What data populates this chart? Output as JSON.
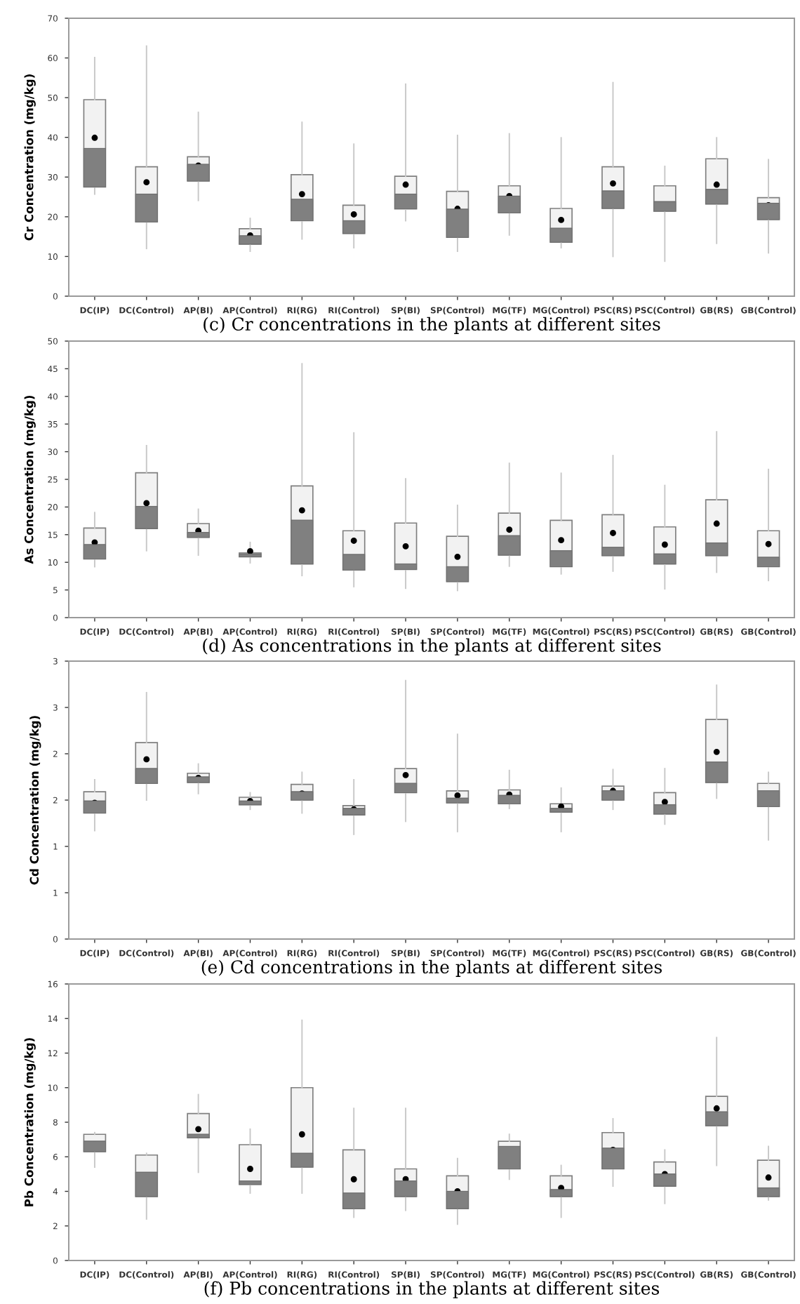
{
  "chart_data": [
    {
      "type": "box",
      "title": "(c) Cr concentrations in the plants at different sites",
      "ylabel": "Cr Concentration (mg/kg)",
      "ylim": [
        0,
        70
      ],
      "yticks": [
        0,
        10,
        20,
        30,
        40,
        50,
        60,
        70
      ],
      "categories": [
        "DC(IP)",
        "DC(Control)",
        "AP(BI)",
        "AP(Control)",
        "RI(RG)",
        "RI(Control)",
        "SP(BI)",
        "SP(Control)",
        "MG(TF)",
        "MG(Control)",
        "PSC(RS)",
        "PSC(Control)",
        "GB(RS)",
        "GB(Control)"
      ],
      "boxes": [
        {
          "low": 25.7,
          "q1": 27.5,
          "median": 37.2,
          "q3": 49.5,
          "high": 60.1,
          "mean": 39.9
        },
        {
          "low": 12.0,
          "q1": 18.7,
          "median": 25.7,
          "q3": 32.6,
          "high": 63,
          "mean": 28.7
        },
        {
          "low": 24.1,
          "q1": 29.0,
          "median": 33.2,
          "q3": 35.1,
          "high": 46.3,
          "mean": 32.9
        },
        {
          "low": 11.3,
          "q1": 13.1,
          "median": 15.2,
          "q3": 17.0,
          "high": 19.6,
          "mean": 15.3
        },
        {
          "low": 14.4,
          "q1": 19.0,
          "median": 24.4,
          "q3": 30.6,
          "high": 43.8,
          "mean": 25.7
        },
        {
          "low": 12.2,
          "q1": 15.8,
          "median": 19.0,
          "q3": 22.9,
          "high": 38.3,
          "mean": 20.6
        },
        {
          "low": 19.0,
          "q1": 22.0,
          "median": 25.7,
          "q3": 30.2,
          "high": 53.4,
          "mean": 28.1
        },
        {
          "low": 11.3,
          "q1": 14.8,
          "median": 21.9,
          "q3": 26.4,
          "high": 40.5,
          "mean": 22.0
        },
        {
          "low": 15.4,
          "q1": 21.0,
          "median": 25.2,
          "q3": 27.8,
          "high": 40.9,
          "mean": 25.2
        },
        {
          "low": 12.2,
          "q1": 13.6,
          "median": 17.1,
          "q3": 22.1,
          "high": 39.9,
          "mean": 19.2
        },
        {
          "low": 10.0,
          "q1": 22.1,
          "median": 26.5,
          "q3": 32.6,
          "high": 53.8,
          "mean": 28.4
        },
        {
          "low": 8.8,
          "q1": 21.4,
          "median": 23.8,
          "q3": 27.8,
          "high": 32.7,
          "mean": 22.5
        },
        {
          "low": 13.3,
          "q1": 23.2,
          "median": 26.9,
          "q3": 34.6,
          "high": 39.9,
          "mean": 28.1
        },
        {
          "low": 10.9,
          "q1": 19.3,
          "median": 23.4,
          "q3": 24.8,
          "high": 34.4,
          "mean": 22.9
        }
      ]
    },
    {
      "type": "box",
      "title": "(d) As concentrations in the plants at different sites",
      "ylabel": "As Concentration (mg/kg)",
      "ylim": [
        0,
        50
      ],
      "yticks": [
        0,
        5,
        10,
        15,
        20,
        25,
        30,
        35,
        40,
        45,
        50
      ],
      "categories": [
        "DC(IP)",
        "DC(Control)",
        "AP(BI)",
        "AP(Control)",
        "RI(RG)",
        "RI(Control)",
        "SP(BI)",
        "SP(Control)",
        "MG(TF)",
        "MG(Control)",
        "PSC(RS)",
        "PSC(Control)",
        "GB(RS)",
        "GB(Control)"
      ],
      "boxes": [
        {
          "low": 9.2,
          "q1": 10.6,
          "median": 13.2,
          "q3": 16.2,
          "high": 19.0,
          "mean": 13.6
        },
        {
          "low": 12.1,
          "q1": 16.1,
          "median": 20.1,
          "q3": 26.2,
          "high": 31.1,
          "mean": 20.7
        },
        {
          "low": 11.3,
          "q1": 14.5,
          "median": 15.4,
          "q3": 17.0,
          "high": 19.6,
          "mean": 15.7
        },
        {
          "low": 9.9,
          "q1": 11.0,
          "median": 11.5,
          "q3": 11.7,
          "high": 13.6,
          "mean": 12.0
        },
        {
          "low": 7.6,
          "q1": 9.7,
          "median": 17.6,
          "q3": 23.8,
          "high": 45.9,
          "mean": 19.4
        },
        {
          "low": 5.6,
          "q1": 8.6,
          "median": 11.4,
          "q3": 15.7,
          "high": 33.4,
          "mean": 13.9
        },
        {
          "low": 5.3,
          "q1": 8.7,
          "median": 9.7,
          "q3": 17.1,
          "high": 25.1,
          "mean": 12.9
        },
        {
          "low": 4.9,
          "q1": 6.5,
          "median": 9.2,
          "q3": 14.7,
          "high": 20.3,
          "mean": 11.0
        },
        {
          "low": 9.3,
          "q1": 11.3,
          "median": 14.8,
          "q3": 18.9,
          "high": 27.9,
          "mean": 15.9
        },
        {
          "low": 7.9,
          "q1": 9.2,
          "median": 12.1,
          "q3": 17.6,
          "high": 26.1,
          "mean": 14.0
        },
        {
          "low": 8.4,
          "q1": 11.2,
          "median": 12.7,
          "q3": 18.6,
          "high": 29.3,
          "mean": 15.3
        },
        {
          "low": 5.2,
          "q1": 9.7,
          "median": 11.5,
          "q3": 16.4,
          "high": 23.9,
          "mean": 13.2
        },
        {
          "low": 8.2,
          "q1": 11.2,
          "median": 13.5,
          "q3": 21.3,
          "high": 33.6,
          "mean": 17.0
        },
        {
          "low": 6.7,
          "q1": 9.2,
          "median": 10.9,
          "q3": 15.7,
          "high": 26.8,
          "mean": 13.3
        }
      ]
    },
    {
      "type": "box",
      "title": "(e) Cd concentrations in the plants at different sites",
      "ylabel": "Cd Concentration (mg/kg)",
      "ylim": [
        0,
        3
      ],
      "yticks": [
        0,
        {
          "value": 0.5,
          "label": "1"
        },
        1,
        {
          "value": 1.5,
          "label": "2"
        },
        2,
        {
          "value": 2.5,
          "label": "3"
        },
        3
      ],
      "categories": [
        "DC(IP)",
        "DC(Control)",
        "AP(BI)",
        "AP(Control)",
        "RI(RG)",
        "RI(Control)",
        "SP(BI)",
        "SP(Control)",
        "MG(TF)",
        "MG(Control)",
        "PSC(RS)",
        "PSC(Control)",
        "GB(RS)",
        "GB(Control)"
      ],
      "boxes": [
        {
          "low": 1.17,
          "q1": 1.36,
          "median": 1.49,
          "q3": 1.59,
          "high": 1.72,
          "mean": 1.47
        },
        {
          "low": 1.5,
          "q1": 1.68,
          "median": 1.84,
          "q3": 2.12,
          "high": 2.66,
          "mean": 1.94
        },
        {
          "low": 1.57,
          "q1": 1.69,
          "median": 1.75,
          "q3": 1.79,
          "high": 1.89,
          "mean": 1.74
        },
        {
          "low": 1.4,
          "q1": 1.45,
          "median": 1.49,
          "q3": 1.53,
          "high": 1.58,
          "mean": 1.49
        },
        {
          "low": 1.36,
          "q1": 1.5,
          "median": 1.59,
          "q3": 1.67,
          "high": 1.8,
          "mean": 1.57
        },
        {
          "low": 1.13,
          "q1": 1.34,
          "median": 1.41,
          "q3": 1.44,
          "high": 1.72,
          "mean": 1.4
        },
        {
          "low": 1.27,
          "q1": 1.58,
          "median": 1.68,
          "q3": 1.84,
          "high": 2.79,
          "mean": 1.77
        },
        {
          "low": 1.16,
          "q1": 1.47,
          "median": 1.52,
          "q3": 1.6,
          "high": 2.21,
          "mean": 1.55
        },
        {
          "low": 1.41,
          "q1": 1.46,
          "median": 1.55,
          "q3": 1.61,
          "high": 1.82,
          "mean": 1.56
        },
        {
          "low": 1.16,
          "q1": 1.37,
          "median": 1.41,
          "q3": 1.46,
          "high": 1.63,
          "mean": 1.43
        },
        {
          "low": 1.4,
          "q1": 1.5,
          "median": 1.6,
          "q3": 1.65,
          "high": 1.83,
          "mean": 1.6
        },
        {
          "low": 1.24,
          "q1": 1.35,
          "median": 1.45,
          "q3": 1.58,
          "high": 1.84,
          "mean": 1.48
        },
        {
          "low": 1.52,
          "q1": 1.69,
          "median": 1.91,
          "q3": 2.37,
          "high": 2.74,
          "mean": 2.02
        },
        {
          "low": 1.07,
          "q1": 1.43,
          "median": 1.6,
          "q3": 1.68,
          "high": 1.8,
          "mean": 1.54
        }
      ]
    },
    {
      "type": "box",
      "title": "(f) Pb concentrations in the plants at different sites",
      "ylabel": "Pb Concentration (mg/kg)",
      "ylim": [
        0,
        16
      ],
      "yticks": [
        0,
        2,
        4,
        6,
        8,
        10,
        12,
        14,
        16
      ],
      "categories": [
        "DC(IP)",
        "DC(Control)",
        "AP(BI)",
        "AP(Control)",
        "RI(RG)",
        "RI(Control)",
        "SP(BI)",
        "SP(Control)",
        "MG(TF)",
        "MG(Control)",
        "PSC(RS)",
        "PSC(Control)",
        "GB(RS)",
        "GB(Control)"
      ],
      "boxes": [
        {
          "low": 5.4,
          "q1": 6.3,
          "median": 6.9,
          "q3": 7.3,
          "high": 7.4,
          "mean": 6.7
        },
        {
          "low": 2.4,
          "q1": 3.7,
          "median": 5.1,
          "q3": 6.1,
          "high": 6.2,
          "mean": 4.9
        },
        {
          "low": 5.1,
          "q1": 7.1,
          "median": 7.3,
          "q3": 8.5,
          "high": 9.6,
          "mean": 7.6
        },
        {
          "low": 3.9,
          "q1": 4.4,
          "median": 4.6,
          "q3": 6.7,
          "high": 7.6,
          "mean": 5.3
        },
        {
          "low": 3.9,
          "q1": 5.4,
          "median": 6.2,
          "q3": 10.0,
          "high": 13.9,
          "mean": 7.3
        },
        {
          "low": 2.5,
          "q1": 3.0,
          "median": 3.9,
          "q3": 6.4,
          "high": 8.8,
          "mean": 4.7
        },
        {
          "low": 2.9,
          "q1": 3.7,
          "median": 4.6,
          "q3": 5.3,
          "high": 8.8,
          "mean": 4.7
        },
        {
          "low": 2.1,
          "q1": 3.0,
          "median": 4.0,
          "q3": 4.9,
          "high": 5.9,
          "mean": 4.0
        },
        {
          "low": 4.7,
          "q1": 5.3,
          "median": 6.6,
          "q3": 6.9,
          "high": 7.3,
          "mean": 6.2
        },
        {
          "low": 2.5,
          "q1": 3.7,
          "median": 4.1,
          "q3": 4.9,
          "high": 5.5,
          "mean": 4.2
        },
        {
          "low": 4.3,
          "q1": 5.3,
          "median": 6.5,
          "q3": 7.4,
          "high": 8.2,
          "mean": 6.4
        },
        {
          "low": 3.3,
          "q1": 4.3,
          "median": 5.0,
          "q3": 5.7,
          "high": 6.4,
          "mean": 5.0
        },
        {
          "low": 5.5,
          "q1": 7.8,
          "median": 8.6,
          "q3": 9.5,
          "high": 12.9,
          "mean": 8.8
        },
        {
          "low": 3.5,
          "q1": 3.7,
          "median": 4.2,
          "q3": 5.8,
          "high": 6.6,
          "mean": 4.8
        }
      ]
    }
  ]
}
